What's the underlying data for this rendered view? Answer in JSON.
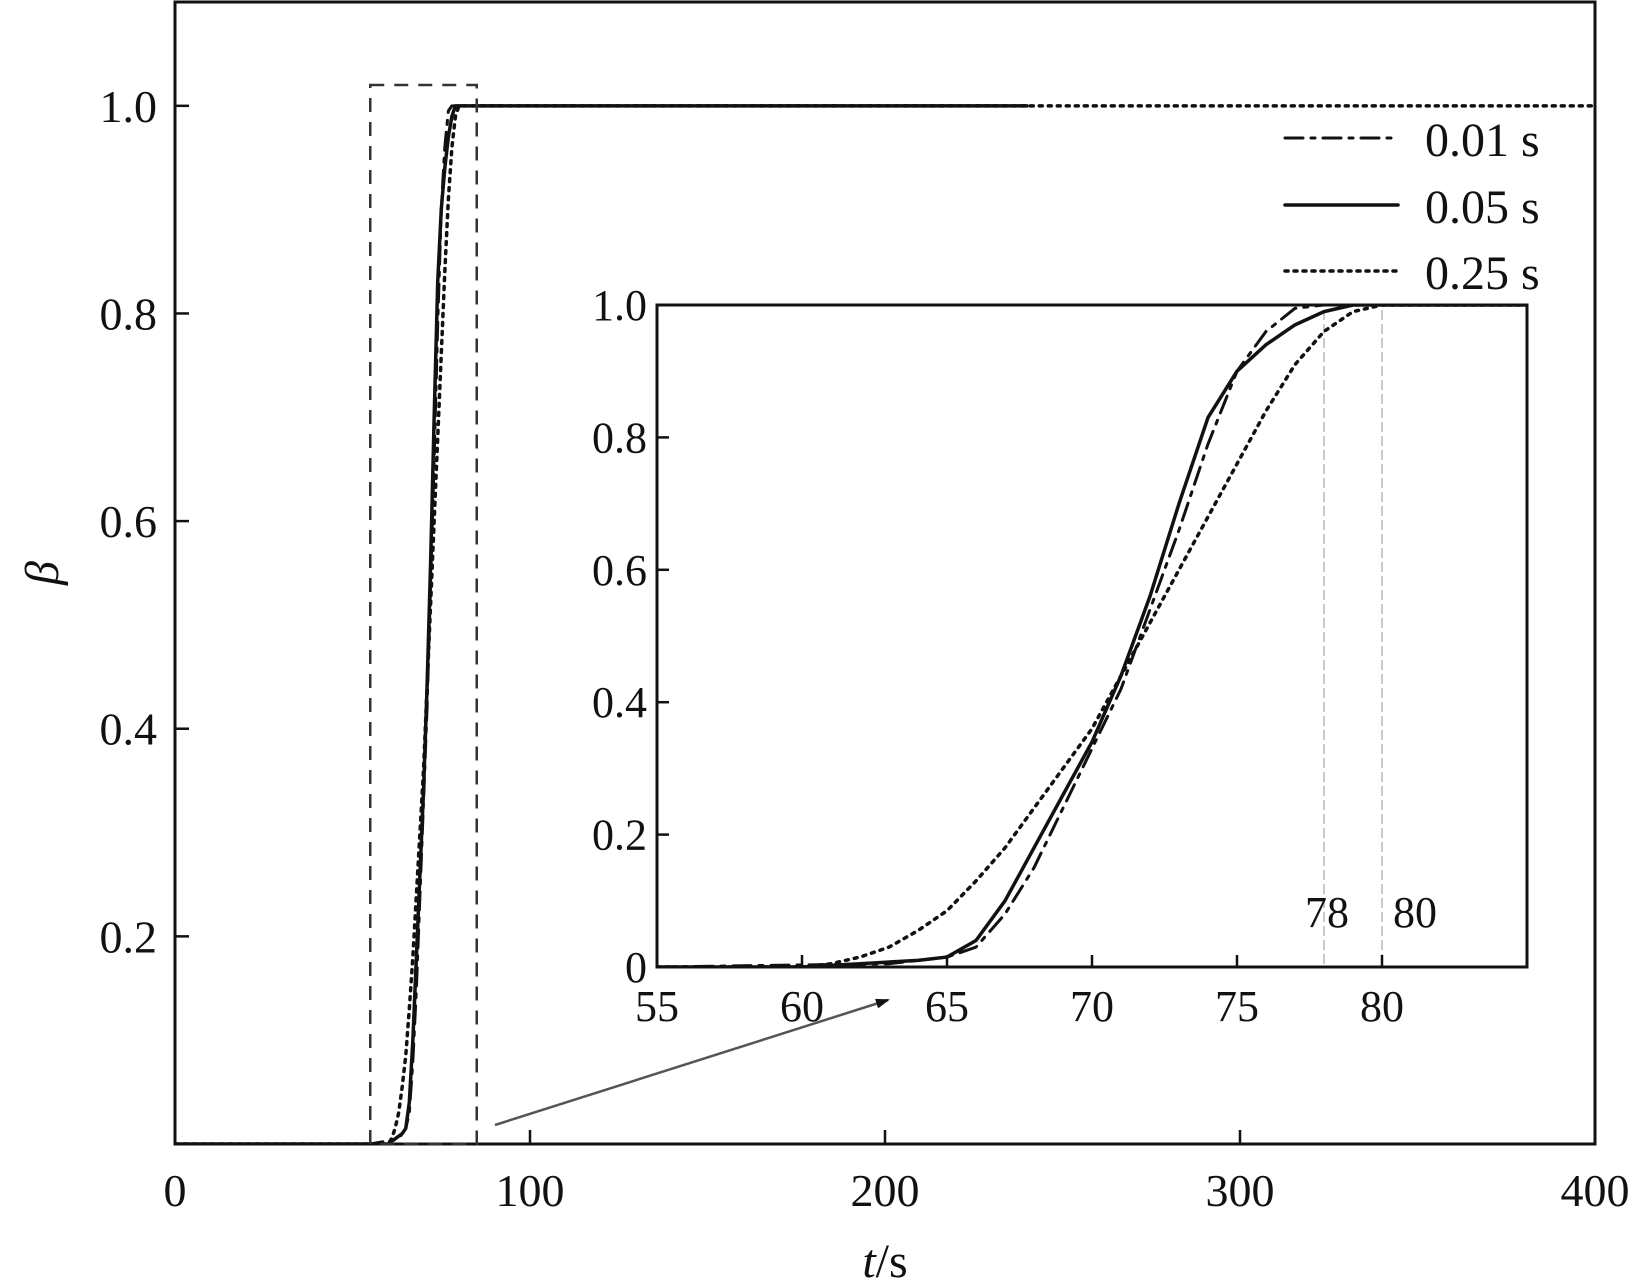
{
  "chart_data": [
    {
      "type": "line",
      "xlabel": "t/s",
      "xlabel_italic": "t",
      "xlabel_unit": "/s",
      "ylabel": "β",
      "xlim": [
        0,
        400
      ],
      "ylim": [
        0,
        1.1
      ],
      "xticks": [
        0,
        100,
        200,
        300,
        400
      ],
      "xtick_labels": [
        "0",
        "100",
        "200",
        "300",
        "400"
      ],
      "yticks": [
        0.2,
        0.4,
        0.6,
        0.8,
        1.0
      ],
      "ytick_labels": [
        "0.2",
        "0.4",
        "0.6",
        "0.8",
        "1.0"
      ],
      "legend_position": "top-right",
      "series": [
        {
          "name": "0.01 s",
          "style": "dash-dot",
          "x": [
            0,
            55,
            63,
            64,
            65,
            66,
            67,
            68,
            69,
            70,
            71,
            72,
            73,
            74,
            75,
            76,
            77,
            78,
            79,
            80,
            90,
            240
          ],
          "y": [
            0,
            0,
            0.005,
            0.01,
            0.015,
            0.03,
            0.08,
            0.15,
            0.24,
            0.33,
            0.42,
            0.54,
            0.66,
            0.79,
            0.9,
            0.96,
            0.995,
            1.0,
            1.0,
            1.0,
            1.0,
            1.0
          ]
        },
        {
          "name": "0.05 s",
          "style": "solid",
          "x": [
            0,
            55,
            60,
            62,
            64,
            65,
            66,
            67,
            68,
            69,
            70,
            71,
            72,
            73,
            74,
            75,
            76,
            77,
            78,
            79,
            80,
            90,
            240
          ],
          "y": [
            0,
            0,
            0.0,
            0.005,
            0.01,
            0.015,
            0.04,
            0.1,
            0.18,
            0.26,
            0.34,
            0.44,
            0.56,
            0.7,
            0.83,
            0.9,
            0.94,
            0.97,
            0.99,
            1.0,
            1.0,
            1.0,
            1.0
          ]
        },
        {
          "name": "0.25 s",
          "style": "dotted",
          "x": [
            0,
            55,
            60,
            61,
            62,
            63,
            64,
            65,
            66,
            67,
            68,
            69,
            70,
            71,
            72,
            73,
            74,
            75,
            76,
            77,
            78,
            79,
            80,
            90,
            400
          ],
          "y": [
            0,
            0,
            0.0,
            0.005,
            0.015,
            0.03,
            0.055,
            0.085,
            0.13,
            0.18,
            0.24,
            0.3,
            0.36,
            0.44,
            0.52,
            0.6,
            0.68,
            0.76,
            0.84,
            0.91,
            0.96,
            0.99,
            1.0,
            1.0,
            1.0
          ]
        }
      ],
      "zoom_box": {
        "x": [
          55,
          85
        ],
        "y": [
          0,
          1.02
        ]
      }
    },
    {
      "type": "line",
      "role": "inset",
      "xlim": [
        55,
        85
      ],
      "ylim": [
        0,
        1.0
      ],
      "xticks": [
        55,
        60,
        65,
        70,
        75,
        80
      ],
      "xtick_labels": [
        "55",
        "60",
        "65",
        "70",
        "75",
        "80"
      ],
      "yticks": [
        0,
        0.2,
        0.4,
        0.6,
        0.8,
        1.0
      ],
      "ytick_labels": [
        "0",
        "0.2",
        "0.4",
        "0.6",
        "0.8",
        "1.0"
      ],
      "annotations": [
        {
          "x": 78,
          "label": "78"
        },
        {
          "x": 80,
          "label": "80"
        }
      ]
    }
  ]
}
